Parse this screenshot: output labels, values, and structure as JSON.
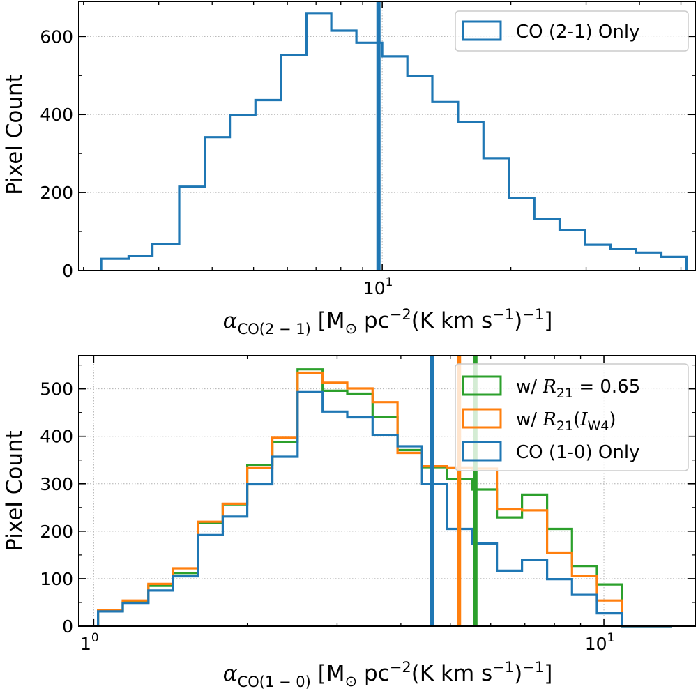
{
  "chart_data": [
    {
      "type": "histogram-step",
      "xscale": "log",
      "xlim": [
        1.95,
        54
      ],
      "ylim": [
        0,
        690
      ],
      "xlabel": "αCO(2−1) [M⊙ pc−2(K km s−1)−1]",
      "ylabel": "Pixel Count",
      "x_ticks": [
        {
          "value": 10,
          "label": "10"
        }
      ],
      "y_ticks": [
        0,
        200,
        400,
        600
      ],
      "grid": true,
      "legend_position": "top-right",
      "series": [
        {
          "name": "CO (2-1) Only",
          "color": "#1f77b4",
          "bin_edges": [
            2.2,
            2.55,
            2.9,
            3.35,
            3.85,
            4.4,
            5.05,
            5.8,
            6.65,
            7.6,
            8.7,
            10.0,
            11.45,
            13.1,
            15.05,
            17.25,
            19.8,
            22.7,
            26.0,
            29.85,
            34.2,
            39.2,
            45.0,
            51.5
          ],
          "counts": [
            30,
            38,
            68,
            215,
            342,
            398,
            437,
            553,
            660,
            615,
            584,
            549,
            498,
            432,
            380,
            288,
            186,
            132,
            103,
            66,
            55,
            46,
            35
          ],
          "median": 9.8
        }
      ]
    },
    {
      "type": "histogram-step",
      "xscale": "log",
      "xlim": [
        0.935,
        15.1
      ],
      "ylim": [
        0,
        570
      ],
      "xlabel": "αCO(1−0) [M⊙ pc−2(K km s−1)−1]",
      "ylabel": "Pixel Count",
      "x_ticks": [
        {
          "value": 1,
          "label": "1"
        },
        {
          "value": 10,
          "label": "10"
        }
      ],
      "y_ticks": [
        0,
        100,
        200,
        300,
        400,
        500
      ],
      "grid": true,
      "legend_position": "top-right",
      "bin_edges": [
        1.02,
        1.14,
        1.28,
        1.43,
        1.6,
        1.79,
        2.0,
        2.24,
        2.51,
        2.81,
        3.14,
        3.52,
        3.94,
        4.4,
        4.93,
        5.52,
        6.17,
        6.91,
        7.74,
        8.66,
        9.69,
        10.85,
        12.14,
        13.6
      ],
      "series": [
        {
          "name": "w/ R21 = 0.65",
          "legend_label": "w/ ",
          "legend_math": "R",
          "legend_sub": "21",
          "legend_suffix": " = 0.65",
          "color": "#2ca02c",
          "counts": [
            32,
            50,
            85,
            112,
            218,
            257,
            340,
            388,
            541,
            496,
            490,
            441,
            371,
            335,
            310,
            288,
            229,
            277,
            205,
            127,
            88,
            0,
            0
          ],
          "median": 5.6
        },
        {
          "name": "w/ R21(IW4)",
          "legend_label": "w/ ",
          "legend_math": "R",
          "legend_sub": "21",
          "legend_open": "(",
          "legend_math2": "I",
          "legend_sub2": "W4",
          "legend_close": ")",
          "color": "#ff7f0e",
          "counts": [
            34,
            54,
            89,
            122,
            220,
            258,
            333,
            397,
            534,
            513,
            501,
            472,
            365,
            337,
            333,
            332,
            246,
            244,
            155,
            106,
            54,
            0,
            0
          ],
          "median": 5.2
        },
        {
          "name": "CO (1-0) Only",
          "color": "#1f77b4",
          "counts": [
            31,
            49,
            75,
            105,
            192,
            231,
            299,
            357,
            493,
            452,
            440,
            402,
            379,
            300,
            205,
            174,
            117,
            139,
            99,
            66,
            27,
            0,
            0
          ],
          "median": 4.6
        }
      ]
    }
  ]
}
